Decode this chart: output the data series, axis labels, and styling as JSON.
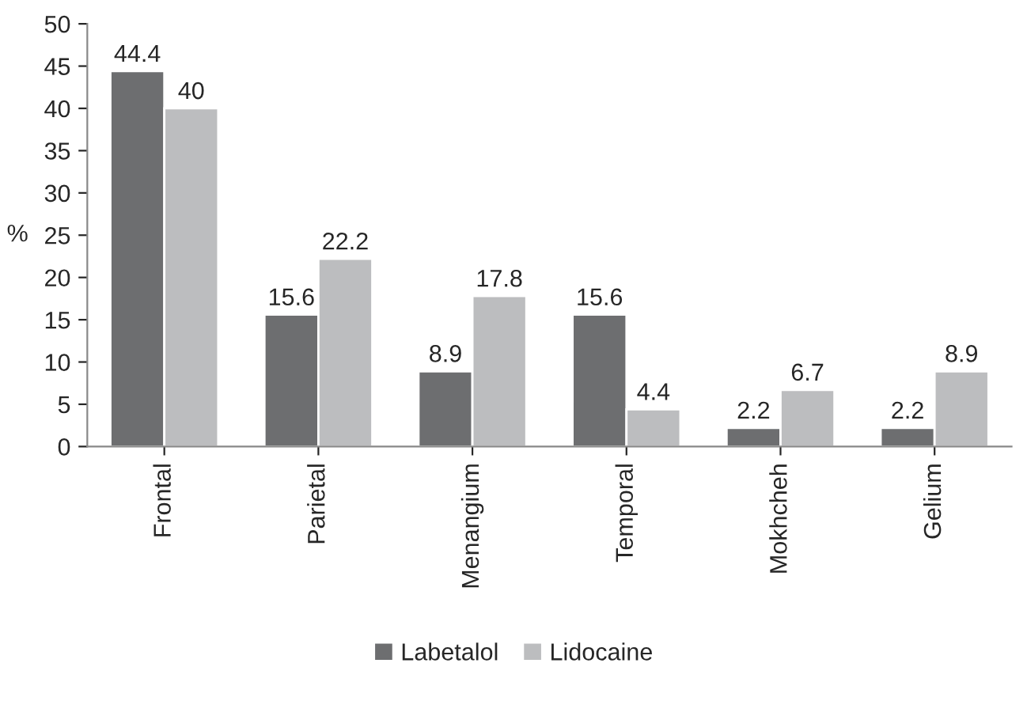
{
  "chart_data": {
    "type": "bar",
    "ylabel": "%",
    "categories": [
      "Frontal",
      "Parietal",
      "Menangium",
      "Temporal",
      "Mokhcheh",
      "Gelium"
    ],
    "series": [
      {
        "name": "Labetalol",
        "color": "#6d6e70",
        "values": [
          44.4,
          15.6,
          8.9,
          15.6,
          2.2,
          2.2
        ]
      },
      {
        "name": "Lidocaine",
        "color": "#bcbdbf",
        "values": [
          40,
          22.2,
          17.8,
          4.4,
          6.7,
          8.9
        ]
      }
    ],
    "ylim": [
      0,
      50
    ],
    "yticks": [
      0,
      5,
      10,
      15,
      20,
      25,
      30,
      35,
      40,
      45,
      50
    ],
    "data_labels": true,
    "legend": "bottom",
    "grid": false
  }
}
